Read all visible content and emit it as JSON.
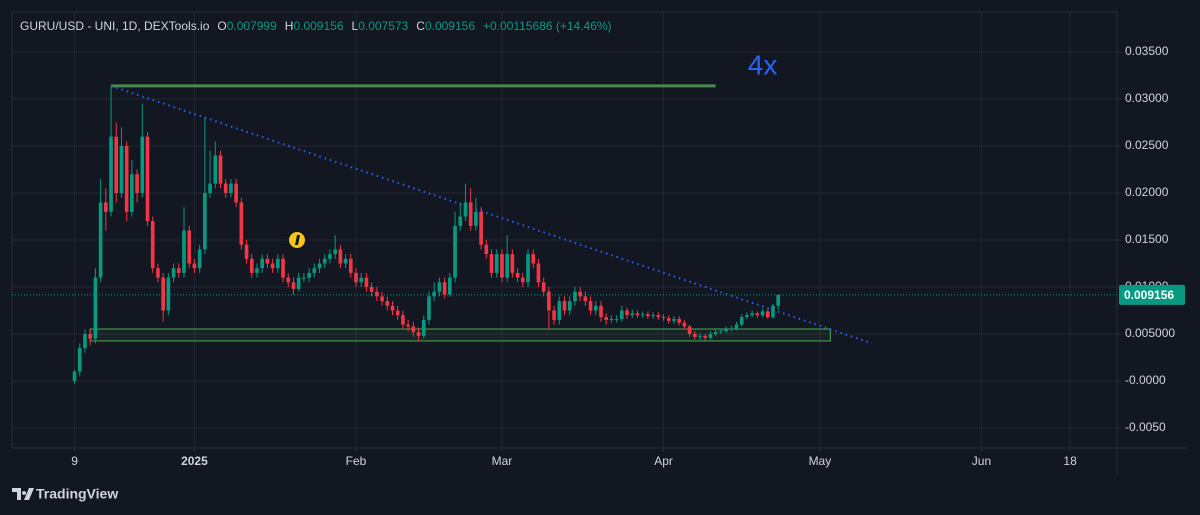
{
  "chart_data": {
    "type": "candlestick",
    "title": "GURU/USD - UNI, 1D, DEXTools.io",
    "ohlc_labels": [
      "O",
      "H",
      "L",
      "C"
    ],
    "change_label": "+0.00115686 (+14.46%)",
    "brand": "TradingView",
    "up_color": "#089981",
    "down_color": "#f23645",
    "grid": true,
    "x": [
      "2024-12-09",
      "2024-12-10",
      "2024-12-11",
      "2024-12-12",
      "2024-12-13",
      "2024-12-14",
      "2024-12-15",
      "2024-12-16",
      "2024-12-17",
      "2024-12-18",
      "2024-12-19",
      "2024-12-20",
      "2024-12-21",
      "2024-12-22",
      "2024-12-23",
      "2024-12-24",
      "2024-12-25",
      "2024-12-26",
      "2024-12-27",
      "2024-12-28",
      "2024-12-29",
      "2024-12-30",
      "2024-12-31",
      "2025-01-01",
      "2025-01-02",
      "2025-01-03",
      "2025-01-04",
      "2025-01-05",
      "2025-01-06",
      "2025-01-07",
      "2025-01-08",
      "2025-01-09",
      "2025-01-10",
      "2025-01-11",
      "2025-01-12",
      "2025-01-13",
      "2025-01-14",
      "2025-01-15",
      "2025-01-16",
      "2025-01-17",
      "2025-01-18",
      "2025-01-19",
      "2025-01-20",
      "2025-01-21",
      "2025-01-22",
      "2025-01-23",
      "2025-01-24",
      "2025-01-25",
      "2025-01-26",
      "2025-01-27",
      "2025-01-28",
      "2025-01-29",
      "2025-01-30",
      "2025-01-31",
      "2025-02-01",
      "2025-02-02",
      "2025-02-03",
      "2025-02-04",
      "2025-02-05",
      "2025-02-06",
      "2025-02-07",
      "2025-02-08",
      "2025-02-09",
      "2025-02-10",
      "2025-02-11",
      "2025-02-12",
      "2025-02-13",
      "2025-02-14",
      "2025-02-15",
      "2025-02-16",
      "2025-02-17",
      "2025-02-18",
      "2025-02-19",
      "2025-02-20",
      "2025-02-21",
      "2025-02-22",
      "2025-02-23",
      "2025-02-24",
      "2025-02-25",
      "2025-02-26",
      "2025-02-27",
      "2025-02-28",
      "2025-03-01",
      "2025-03-02",
      "2025-03-03",
      "2025-03-04",
      "2025-03-05",
      "2025-03-06",
      "2025-03-07",
      "2025-03-08",
      "2025-03-09",
      "2025-03-10",
      "2025-03-11",
      "2025-03-12",
      "2025-03-13",
      "2025-03-14",
      "2025-03-15",
      "2025-03-16",
      "2025-03-17",
      "2025-03-18",
      "2025-03-19",
      "2025-03-20",
      "2025-03-21",
      "2025-03-22",
      "2025-03-23",
      "2025-03-24",
      "2025-03-25",
      "2025-03-26",
      "2025-03-27",
      "2025-03-28",
      "2025-03-29",
      "2025-03-30",
      "2025-03-31",
      "2025-04-01",
      "2025-04-02",
      "2025-04-03",
      "2025-04-04",
      "2025-04-05",
      "2025-04-06",
      "2025-04-07",
      "2025-04-08",
      "2025-04-09",
      "2025-04-10",
      "2025-04-11",
      "2025-04-12",
      "2025-04-13",
      "2025-04-14",
      "2025-04-15",
      "2025-04-16",
      "2025-04-17",
      "2025-04-18",
      "2025-04-19",
      "2025-04-20",
      "2025-04-21",
      "2025-04-22",
      "2025-04-23"
    ],
    "open": [
      0,
      0.001,
      0.0035,
      0.005,
      0.0045,
      0.011,
      0.019,
      0.018,
      0.026,
      0.02,
      0.025,
      0.018,
      0.022,
      0.02,
      0.026,
      0.017,
      0.012,
      0.011,
      0.0075,
      0.011,
      0.012,
      0.0115,
      0.016,
      0.0125,
      0.012,
      0.014,
      0.02,
      0.021,
      0.024,
      0.021,
      0.02,
      0.021,
      0.019,
      0.0145,
      0.013,
      0.0115,
      0.012,
      0.013,
      0.0125,
      0.012,
      0.013,
      0.011,
      0.0105,
      0.0098,
      0.011,
      0.011,
      0.0115,
      0.012,
      0.0125,
      0.013,
      0.0135,
      0.014,
      0.0125,
      0.013,
      0.0115,
      0.0105,
      0.011,
      0.01,
      0.0095,
      0.009,
      0.0085,
      0.008,
      0.0075,
      0.007,
      0.006,
      0.0058,
      0.0052,
      0.0048,
      0.0065,
      0.009,
      0.0095,
      0.0105,
      0.0092,
      0.011,
      0.0165,
      0.0175,
      0.019,
      0.0165,
      0.018,
      0.0145,
      0.0135,
      0.0115,
      0.0135,
      0.011,
      0.0135,
      0.0115,
      0.011,
      0.0105,
      0.0135,
      0.0125,
      0.0105,
      0.0095,
      0.0075,
      0.0065,
      0.0085,
      0.0075,
      0.0085,
      0.0095,
      0.009,
      0.0085,
      0.0075,
      0.008,
      0.0068,
      0.0065,
      0.0066,
      0.0066,
      0.0075,
      0.007,
      0.0072,
      0.007,
      0.0071,
      0.0069,
      0.007,
      0.0068,
      0.0067,
      0.0064,
      0.0066,
      0.0062,
      0.0058,
      0.005,
      0.0047,
      0.0048,
      0.0046,
      0.005,
      0.0052,
      0.0053,
      0.0055,
      0.0056,
      0.006,
      0.0068,
      0.007,
      0.0072,
      0.007,
      0.0074,
      0.0068,
      0.007999
    ],
    "high": [
      0.0012,
      0.004,
      0.0055,
      0.0055,
      0.012,
      0.0215,
      0.0205,
      0.0314,
      0.0275,
      0.027,
      0.0255,
      0.0235,
      0.0225,
      0.0295,
      0.0265,
      0.0175,
      0.0125,
      0.0115,
      0.0115,
      0.0125,
      0.0125,
      0.0185,
      0.0165,
      0.013,
      0.0145,
      0.028,
      0.0245,
      0.0255,
      0.0245,
      0.0215,
      0.0215,
      0.0215,
      0.0195,
      0.015,
      0.0135,
      0.0125,
      0.0135,
      0.0135,
      0.013,
      0.0135,
      0.0135,
      0.0115,
      0.011,
      0.0115,
      0.0115,
      0.012,
      0.0125,
      0.013,
      0.0135,
      0.014,
      0.0155,
      0.0145,
      0.0135,
      0.0135,
      0.012,
      0.0115,
      0.0115,
      0.0105,
      0.01,
      0.0095,
      0.009,
      0.0085,
      0.008,
      0.0075,
      0.0065,
      0.0063,
      0.0057,
      0.007,
      0.0095,
      0.0105,
      0.011,
      0.011,
      0.0115,
      0.018,
      0.019,
      0.021,
      0.0205,
      0.0195,
      0.0185,
      0.015,
      0.014,
      0.014,
      0.014,
      0.0155,
      0.014,
      0.012,
      0.0115,
      0.014,
      0.014,
      0.013,
      0.011,
      0.01,
      0.008,
      0.009,
      0.009,
      0.009,
      0.01,
      0.01,
      0.0095,
      0.009,
      0.0085,
      0.0085,
      0.0072,
      0.007,
      0.007,
      0.008,
      0.0078,
      0.0076,
      0.0075,
      0.0074,
      0.0074,
      0.0073,
      0.0073,
      0.0071,
      0.007,
      0.0069,
      0.0069,
      0.0065,
      0.006,
      0.0053,
      0.0051,
      0.005,
      0.0053,
      0.0055,
      0.0056,
      0.0058,
      0.0059,
      0.0063,
      0.0071,
      0.0073,
      0.0075,
      0.0074,
      0.0077,
      0.0076,
      0.0082,
      0.009156
    ],
    "low": [
      -0.0003,
      0.0005,
      0.003,
      0.0038,
      0.004,
      0.0105,
      0.016,
      0.0175,
      0.019,
      0.0195,
      0.017,
      0.0175,
      0.019,
      0.0195,
      0.0165,
      0.0115,
      0.0105,
      0.0063,
      0.007,
      0.0105,
      0.011,
      0.011,
      0.012,
      0.0115,
      0.0115,
      0.0135,
      0.0195,
      0.0205,
      0.0205,
      0.0195,
      0.0195,
      0.0185,
      0.014,
      0.0125,
      0.011,
      0.011,
      0.0115,
      0.012,
      0.0115,
      0.0115,
      0.0105,
      0.01,
      0.0092,
      0.0095,
      0.0105,
      0.0105,
      0.011,
      0.0115,
      0.012,
      0.0125,
      0.013,
      0.012,
      0.012,
      0.011,
      0.01,
      0.01,
      0.0095,
      0.009,
      0.0085,
      0.008,
      0.0075,
      0.007,
      0.0065,
      0.0055,
      0.0053,
      0.0047,
      0.0042,
      0.0045,
      0.006,
      0.0085,
      0.009,
      0.0088,
      0.009,
      0.0105,
      0.016,
      0.017,
      0.016,
      0.016,
      0.014,
      0.013,
      0.011,
      0.011,
      0.0105,
      0.0105,
      0.011,
      0.0105,
      0.01,
      0.01,
      0.012,
      0.01,
      0.009,
      0.0055,
      0.006,
      0.006,
      0.007,
      0.007,
      0.008,
      0.0085,
      0.008,
      0.007,
      0.007,
      0.0063,
      0.006,
      0.0062,
      0.0062,
      0.0063,
      0.0066,
      0.0067,
      0.0067,
      0.0067,
      0.0066,
      0.0066,
      0.0065,
      0.0064,
      0.0061,
      0.0061,
      0.0059,
      0.0055,
      0.0047,
      0.0044,
      0.0044,
      0.0043,
      0.0044,
      0.0048,
      0.005,
      0.0051,
      0.0053,
      0.0054,
      0.0058,
      0.0066,
      0.0068,
      0.0067,
      0.0068,
      0.0066,
      0.0066,
      0.007573
    ],
    "close": [
      0.001,
      0.0035,
      0.005,
      0.0045,
      0.011,
      0.019,
      0.018,
      0.026,
      0.02,
      0.025,
      0.018,
      0.022,
      0.02,
      0.026,
      0.017,
      0.012,
      0.011,
      0.0075,
      0.011,
      0.012,
      0.0115,
      0.016,
      0.0125,
      0.012,
      0.014,
      0.02,
      0.021,
      0.024,
      0.021,
      0.02,
      0.021,
      0.019,
      0.0145,
      0.013,
      0.0115,
      0.012,
      0.013,
      0.0125,
      0.012,
      0.013,
      0.011,
      0.0105,
      0.0098,
      0.011,
      0.011,
      0.0115,
      0.012,
      0.0125,
      0.013,
      0.0135,
      0.014,
      0.0125,
      0.013,
      0.0115,
      0.0105,
      0.011,
      0.01,
      0.0095,
      0.009,
      0.0085,
      0.008,
      0.0075,
      0.007,
      0.006,
      0.0058,
      0.0052,
      0.0048,
      0.0065,
      0.009,
      0.0095,
      0.0105,
      0.0092,
      0.011,
      0.0165,
      0.0175,
      0.019,
      0.0165,
      0.018,
      0.0145,
      0.0135,
      0.0115,
      0.0135,
      0.011,
      0.0135,
      0.0115,
      0.011,
      0.0105,
      0.0135,
      0.0125,
      0.0105,
      0.0095,
      0.0075,
      0.0065,
      0.0085,
      0.0075,
      0.0085,
      0.0095,
      0.009,
      0.0085,
      0.0075,
      0.008,
      0.0068,
      0.0065,
      0.0066,
      0.0066,
      0.0075,
      0.007,
      0.0072,
      0.007,
      0.0071,
      0.0069,
      0.007,
      0.0068,
      0.0067,
      0.0064,
      0.0066,
      0.0062,
      0.0058,
      0.005,
      0.0047,
      0.0048,
      0.0046,
      0.005,
      0.0052,
      0.0053,
      0.0055,
      0.0056,
      0.006,
      0.0068,
      0.007,
      0.0072,
      0.007,
      0.0074,
      0.0068,
      0.007999,
      0.009156
    ],
    "xlim": [
      "2024-11-27",
      "2025-06-27"
    ],
    "ylim": [
      -0.00713,
      0.03926
    ],
    "xticks": [
      {
        "value": "2024-12-09",
        "label": "9"
      },
      {
        "value": "2025-01-01",
        "label": "2025"
      },
      {
        "value": "2025-02-01",
        "label": "Feb"
      },
      {
        "value": "2025-03-01",
        "label": "Mar"
      },
      {
        "value": "2025-04-01",
        "label": "Apr"
      },
      {
        "value": "2025-05-01",
        "label": "May"
      },
      {
        "value": "2025-06-01",
        "label": "Jun"
      },
      {
        "value": "2025-06-18",
        "label": "18"
      }
    ],
    "yticks": [
      {
        "value": 0.035,
        "label": "0.03500"
      },
      {
        "value": 0.03,
        "label": "0.03000"
      },
      {
        "value": 0.025,
        "label": "0.02500"
      },
      {
        "value": 0.02,
        "label": "0.02000"
      },
      {
        "value": 0.015,
        "label": "0.01500"
      },
      {
        "value": 0.01,
        "label": "0.01000"
      },
      {
        "value": 0.005,
        "label": "0.005000"
      },
      {
        "value": 0,
        "label": "-0.0000"
      },
      {
        "value": -0.005,
        "label": "-0.0050"
      }
    ],
    "lines": [
      {
        "x": [
          "2024-12-16",
          "2025-04-11"
        ],
        "y": [
          0.0314,
          0.0314
        ],
        "color": "#4a8a4e",
        "style": "solid"
      },
      {
        "x": [
          "2024-12-16",
          "2025-05-11"
        ],
        "y": [
          0.0314,
          0.004
        ],
        "color": "#2962ff",
        "style": "dotted"
      }
    ],
    "rectangles": [
      {
        "x": [
          "2024-12-12",
          "2025-05-03"
        ],
        "y": [
          0.00426,
          0.00553
        ],
        "color": "#4caf50"
      }
    ],
    "annotations": [
      {
        "text": "4x",
        "x": "2025-04-20",
        "y": 0.0334,
        "color": "#2962ff"
      }
    ]
  }
}
